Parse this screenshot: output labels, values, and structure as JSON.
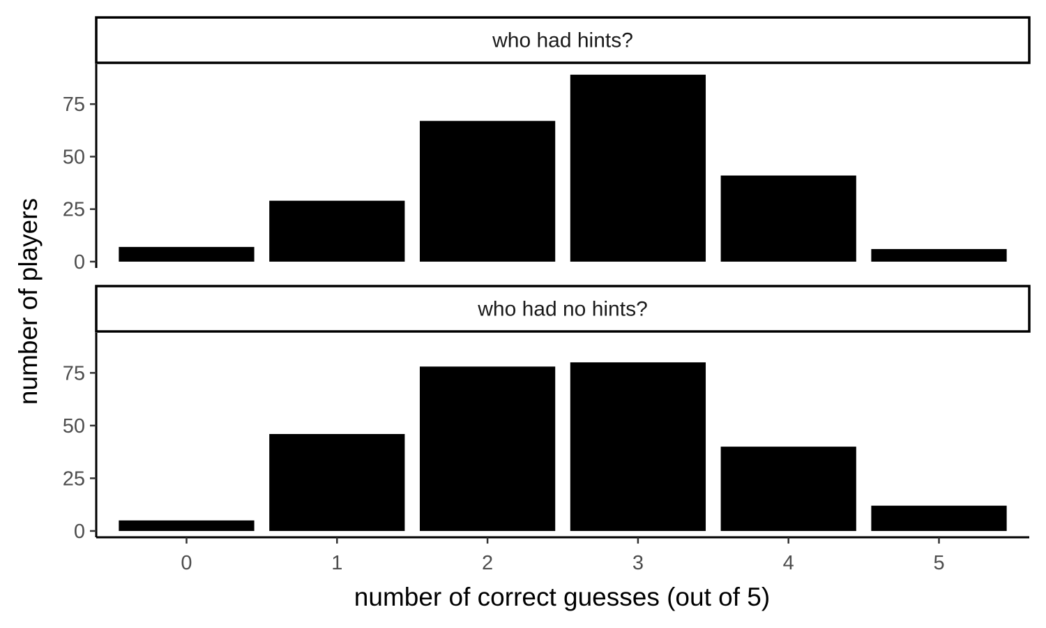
{
  "chart_data": {
    "type": "bar",
    "xlabel": "number of correct guesses (out of 5)",
    "ylabel": "number of players",
    "categories": [
      "0",
      "1",
      "2",
      "3",
      "4",
      "5"
    ],
    "x_values": [
      0,
      1,
      2,
      3,
      4,
      5
    ],
    "yticks": [
      0,
      25,
      50,
      75
    ],
    "ylim": [
      -3,
      94
    ],
    "grid": false,
    "legend": "none",
    "bar_color": "#000000",
    "panels": [
      {
        "title": "who had hints?",
        "values": [
          7,
          29,
          67,
          89,
          41,
          6
        ]
      },
      {
        "title": "who had no hints?",
        "values": [
          5,
          46,
          78,
          80,
          40,
          12
        ]
      }
    ]
  }
}
